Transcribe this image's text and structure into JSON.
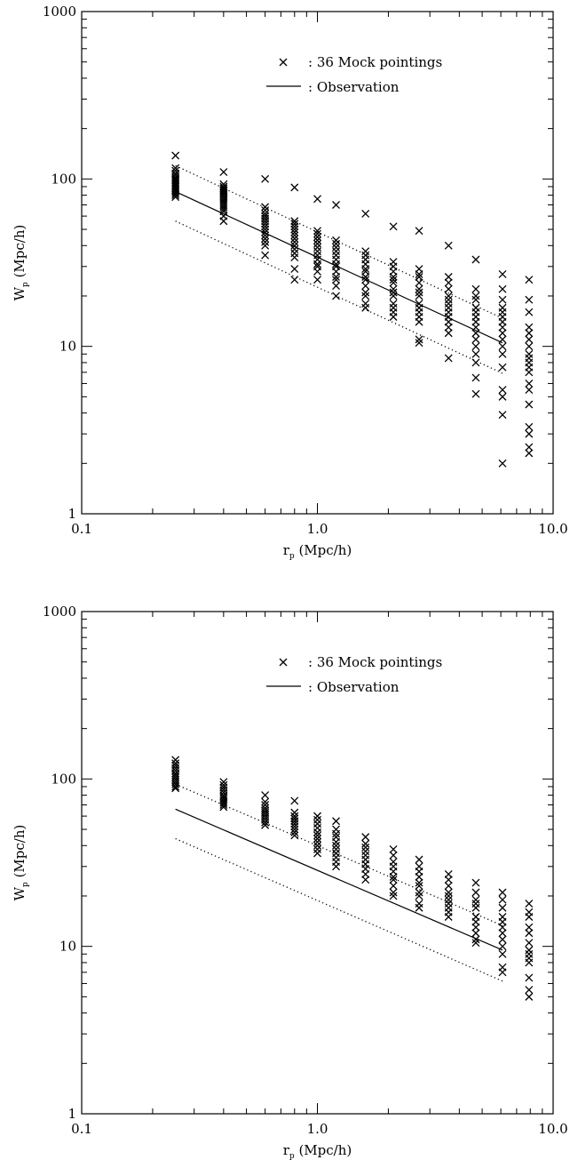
{
  "chart_data": [
    {
      "type": "scatter",
      "xscale": "log",
      "yscale": "log",
      "xlim": [
        0.1,
        10.0
      ],
      "ylim": [
        1,
        1000
      ],
      "xticks": [
        0.1,
        1.0,
        10.0
      ],
      "xtick_labels": [
        "0.1",
        "1.0",
        "10.0"
      ],
      "yticks": [
        1,
        10,
        100,
        1000
      ],
      "ytick_labels": [
        "1",
        "10",
        "100",
        "1000"
      ],
      "xlabel": "r",
      "xlabel_sub": "p",
      "xlabel_unit": " (Mpc/h)",
      "ylabel": "W",
      "ylabel_sub": "p",
      "ylabel_unit": " (Mpc/h)",
      "legend": {
        "placement": "top-right",
        "entries": [
          {
            "marker": "cross",
            "label": ": 36 Mock pointings"
          },
          {
            "marker": "line",
            "label": ": Observation"
          }
        ]
      },
      "series": [
        {
          "style": "cross",
          "points": [
            {
              "x": 0.25,
              "y": [
                138,
                116,
                112,
                108,
                105,
                102,
                100,
                98,
                96,
                94,
                92,
                90,
                88,
                86,
                84,
                82,
                80,
                78
              ]
            },
            {
              "x": 0.4,
              "y": [
                110,
                93,
                90,
                88,
                86,
                84,
                82,
                80,
                78,
                76,
                74,
                72,
                70,
                68,
                66,
                64,
                60,
                56
              ]
            },
            {
              "x": 0.6,
              "y": [
                100,
                68,
                65,
                62,
                60,
                58,
                56,
                54,
                52,
                50,
                48,
                46,
                44,
                42,
                40,
                35
              ]
            },
            {
              "x": 0.8,
              "y": [
                89,
                56,
                54,
                52,
                50,
                48,
                46,
                44,
                42,
                40,
                38,
                36,
                34,
                29,
                25
              ]
            },
            {
              "x": 1.0,
              "y": [
                76,
                49,
                47,
                45,
                43,
                41,
                39,
                37,
                35,
                33,
                31,
                30,
                28,
                25
              ]
            },
            {
              "x": 1.2,
              "y": [
                70,
                43,
                41,
                39,
                37,
                35,
                33,
                31,
                30,
                28,
                26,
                25,
                23,
                20
              ]
            },
            {
              "x": 1.6,
              "y": [
                62,
                37,
                35,
                33,
                31,
                29,
                28,
                26,
                25,
                23,
                21,
                20,
                18,
                17
              ]
            },
            {
              "x": 2.1,
              "y": [
                52,
                32,
                30,
                28,
                26,
                25,
                24,
                22,
                21,
                20,
                18,
                17,
                16,
                15
              ]
            },
            {
              "x": 2.7,
              "y": [
                49,
                29,
                27,
                26,
                24,
                22,
                21,
                20,
                18,
                17,
                16,
                15,
                14,
                11,
                10.5
              ]
            },
            {
              "x": 3.6,
              "y": [
                40,
                26,
                24,
                22,
                20,
                19,
                18,
                17,
                16,
                15,
                14,
                13,
                12,
                8.5
              ]
            },
            {
              "x": 4.7,
              "y": [
                33,
                22,
                20,
                19,
                17,
                16,
                15,
                14,
                13,
                12,
                11,
                10,
                9,
                8,
                6.5,
                5.2
              ]
            },
            {
              "x": 6.1,
              "y": [
                27,
                22,
                19,
                17,
                16,
                15,
                14,
                13,
                12,
                11,
                10,
                9,
                7.5,
                5.5,
                5,
                3.9,
                2.0
              ]
            },
            {
              "x": 7.9,
              "y": [
                25,
                19,
                16,
                13,
                12,
                11,
                10,
                9,
                8.5,
                8,
                7.5,
                7,
                6,
                5.5,
                4.5,
                3.3,
                3.0,
                2.5,
                2.3
              ]
            }
          ]
        },
        {
          "style": "solid",
          "x": [
            0.25,
            6.1
          ],
          "y": [
            84,
            10.5
          ]
        },
        {
          "style": "dotted",
          "x": [
            0.25,
            6.1
          ],
          "y": [
            120,
            14.7
          ]
        },
        {
          "style": "dotted",
          "x": [
            0.25,
            6.1
          ],
          "y": [
            56,
            6.9
          ]
        }
      ]
    },
    {
      "type": "scatter",
      "xscale": "log",
      "yscale": "log",
      "xlim": [
        0.1,
        10.0
      ],
      "ylim": [
        1,
        1000
      ],
      "xticks": [
        0.1,
        1.0,
        10.0
      ],
      "xtick_labels": [
        "0.1",
        "1.0",
        "10.0"
      ],
      "yticks": [
        1,
        10,
        100,
        1000
      ],
      "ytick_labels": [
        "1",
        "10",
        "100",
        "1000"
      ],
      "xlabel": "r",
      "xlabel_sub": "p",
      "xlabel_unit": " (Mpc/h)",
      "ylabel": "W",
      "ylabel_sub": "p",
      "ylabel_unit": " (Mpc/h)",
      "legend": {
        "placement": "top-right",
        "entries": [
          {
            "marker": "cross",
            "label": ": 36 Mock pointings"
          },
          {
            "marker": "line",
            "label": ": Observation"
          }
        ]
      },
      "series": [
        {
          "style": "cross",
          "points": [
            {
              "x": 0.25,
              "y": [
                130,
                124,
                120,
                116,
                112,
                108,
                105,
                102,
                99,
                96,
                93,
                90,
                88
              ]
            },
            {
              "x": 0.4,
              "y": [
                96,
                92,
                89,
                86,
                83,
                80,
                78,
                76,
                74,
                72,
                70,
                68
              ]
            },
            {
              "x": 0.6,
              "y": [
                80,
                73,
                70,
                67,
                65,
                63,
                61,
                59,
                57,
                55,
                53
              ]
            },
            {
              "x": 0.8,
              "y": [
                74,
                63,
                60,
                58,
                56,
                54,
                52,
                50,
                48,
                46
              ]
            },
            {
              "x": 1.0,
              "y": [
                60,
                57,
                54,
                51,
                48,
                46,
                44,
                42,
                40,
                38,
                36
              ]
            },
            {
              "x": 1.2,
              "y": [
                56,
                50,
                47,
                45,
                42,
                40,
                38,
                36,
                34,
                32,
                30
              ]
            },
            {
              "x": 1.6,
              "y": [
                45,
                41,
                39,
                37,
                35,
                33,
                31,
                29,
                27,
                25
              ]
            },
            {
              "x": 2.1,
              "y": [
                38,
                35,
                32,
                30,
                28,
                26,
                25,
                23,
                21,
                20
              ]
            },
            {
              "x": 2.7,
              "y": [
                33,
                30,
                28,
                26,
                24,
                23,
                21,
                20,
                18,
                17
              ]
            },
            {
              "x": 3.6,
              "y": [
                27,
                25,
                23,
                21,
                20,
                19,
                18,
                17,
                16,
                15
              ]
            },
            {
              "x": 4.7,
              "y": [
                24,
                21,
                19,
                18,
                17,
                15,
                14,
                13,
                12,
                11,
                10.5
              ]
            },
            {
              "x": 6.1,
              "y": [
                21,
                19,
                17,
                15,
                14,
                13,
                12,
                11,
                10,
                9,
                7.5,
                7
              ]
            },
            {
              "x": 7.9,
              "y": [
                18,
                16,
                15,
                13,
                12,
                10.5,
                9.5,
                9,
                8.5,
                8,
                6.5,
                5.5,
                5
              ]
            }
          ]
        },
        {
          "style": "solid",
          "x": [
            0.25,
            6.1
          ],
          "y": [
            66,
            9.5
          ]
        },
        {
          "style": "dotted",
          "x": [
            0.25,
            6.1
          ],
          "y": [
            93,
            13.3
          ]
        },
        {
          "style": "dotted",
          "x": [
            0.25,
            6.1
          ],
          "y": [
            44,
            6.2
          ]
        }
      ]
    }
  ]
}
